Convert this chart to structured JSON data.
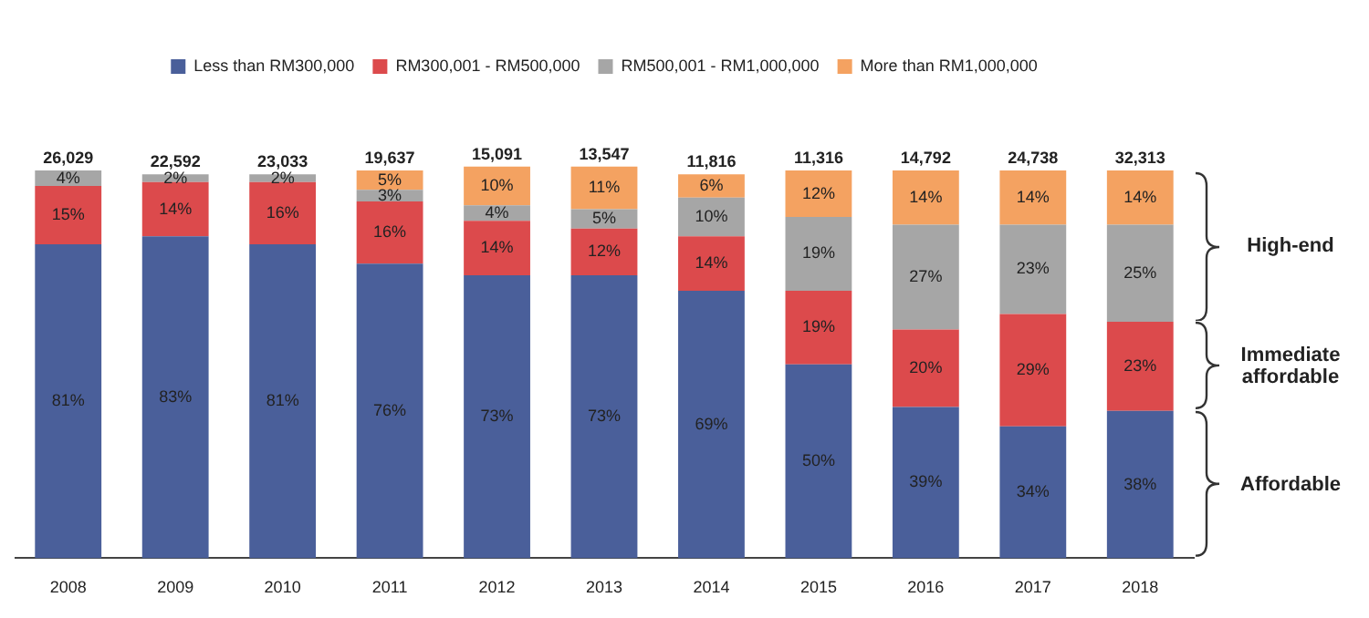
{
  "chart_data": {
    "type": "bar",
    "stacked": true,
    "tick_labels": "x",
    "legend": "top",
    "grid": false,
    "categories": [
      "2008",
      "2009",
      "2010",
      "2011",
      "2012",
      "2013",
      "2014",
      "2015",
      "2016",
      "2017",
      "2018"
    ],
    "series": [
      {
        "name": "Less than RM300,000",
        "color": "#4a5f9a",
        "values": [
          81,
          83,
          81,
          76,
          73,
          73,
          69,
          50,
          39,
          34,
          38
        ],
        "value_labels": [
          "81%",
          "83%",
          "81%",
          "76%",
          "73%",
          "73%",
          "69%",
          "50%",
          "39%",
          "34%",
          "38%"
        ]
      },
      {
        "name": "RM300,001 - RM500,000",
        "color": "#dc4a4c",
        "values": [
          15,
          14,
          16,
          16,
          14,
          12,
          14,
          19,
          20,
          29,
          23
        ],
        "value_labels": [
          "15%",
          "14%",
          "16%",
          "16%",
          "14%",
          "12%",
          "14%",
          "19%",
          "20%",
          "29%",
          "23%"
        ]
      },
      {
        "name": "RM500,001 - RM1,000,000",
        "color": "#a6a6a6",
        "values": [
          4,
          2,
          2,
          3,
          4,
          5,
          10,
          19,
          27,
          23,
          25
        ],
        "value_labels": [
          "4%",
          "2%",
          "2%",
          "3%",
          "4%",
          "5%",
          "10%",
          "19%",
          "27%",
          "23%",
          "25%"
        ]
      },
      {
        "name": "More than RM1,000,000",
        "color": "#f4a261",
        "values": [
          null,
          null,
          null,
          5,
          10,
          11,
          6,
          12,
          14,
          14,
          14
        ],
        "value_labels": [
          null,
          null,
          null,
          "5%",
          "10%",
          "11%",
          "6%",
          "12%",
          "14%",
          "14%",
          "14%"
        ]
      }
    ],
    "annotations": [
      "High-end",
      "Immediate affordable",
      "Affordable",
      {
        "text": "26,029",
        "x": "2008",
        "y": 100
      },
      {
        "text": "22,592",
        "x": "2009",
        "y": 99
      },
      {
        "text": "23,033",
        "x": "2010",
        "y": 99
      },
      {
        "text": "19,637",
        "x": "2011",
        "y": 100
      },
      {
        "text": "15,091",
        "x": "2012",
        "y": 101
      },
      {
        "text": "13,547",
        "x": "2013",
        "y": 101
      },
      {
        "text": "11,816",
        "x": "2014",
        "y": 99
      },
      {
        "text": "11,316",
        "x": "2015",
        "y": 100
      },
      {
        "text": "14,792",
        "x": "2016",
        "y": 100
      },
      {
        "text": "24,738",
        "x": "2017",
        "y": 100
      },
      {
        "text": "32,313",
        "x": "2018",
        "y": 100
      }
    ]
  }
}
